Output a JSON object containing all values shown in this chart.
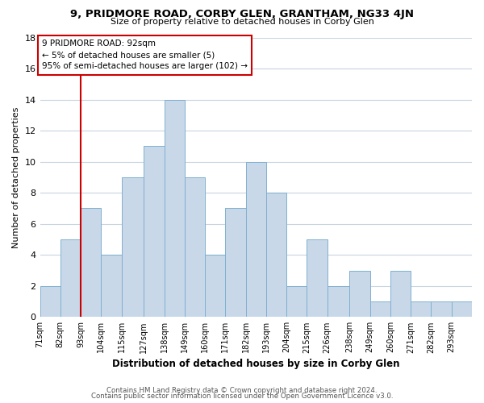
{
  "title": "9, PRIDMORE ROAD, CORBY GLEN, GRANTHAM, NG33 4JN",
  "subtitle": "Size of property relative to detached houses in Corby Glen",
  "xlabel": "Distribution of detached houses by size in Corby Glen",
  "ylabel": "Number of detached properties",
  "footer_line1": "Contains HM Land Registry data © Crown copyright and database right 2024.",
  "footer_line2": "Contains public sector information licensed under the Open Government Licence v3.0.",
  "bin_labels": [
    "71sqm",
    "82sqm",
    "93sqm",
    "104sqm",
    "115sqm",
    "127sqm",
    "138sqm",
    "149sqm",
    "160sqm",
    "171sqm",
    "182sqm",
    "193sqm",
    "204sqm",
    "215sqm",
    "226sqm",
    "238sqm",
    "249sqm",
    "260sqm",
    "271sqm",
    "282sqm",
    "293sqm"
  ],
  "bin_edges": [
    71,
    82,
    93,
    104,
    115,
    127,
    138,
    149,
    160,
    171,
    182,
    193,
    204,
    215,
    226,
    238,
    249,
    260,
    271,
    282,
    293,
    304
  ],
  "counts": [
    2,
    5,
    7,
    4,
    9,
    11,
    14,
    9,
    4,
    7,
    10,
    8,
    2,
    5,
    2,
    3,
    1,
    3,
    1,
    1,
    1
  ],
  "bar_color": "#c8d8e8",
  "bar_edge_color": "#7fb0d0",
  "highlight_color": "#cc0000",
  "annotation_title": "9 PRIDMORE ROAD: 92sqm",
  "annotation_line1": "← 5% of detached houses are smaller (5)",
  "annotation_line2": "95% of semi-detached houses are larger (102) →",
  "ylim": [
    0,
    18
  ],
  "yticks": [
    0,
    2,
    4,
    6,
    8,
    10,
    12,
    14,
    16,
    18
  ],
  "background_color": "#ffffff",
  "grid_color": "#c8d4e0"
}
